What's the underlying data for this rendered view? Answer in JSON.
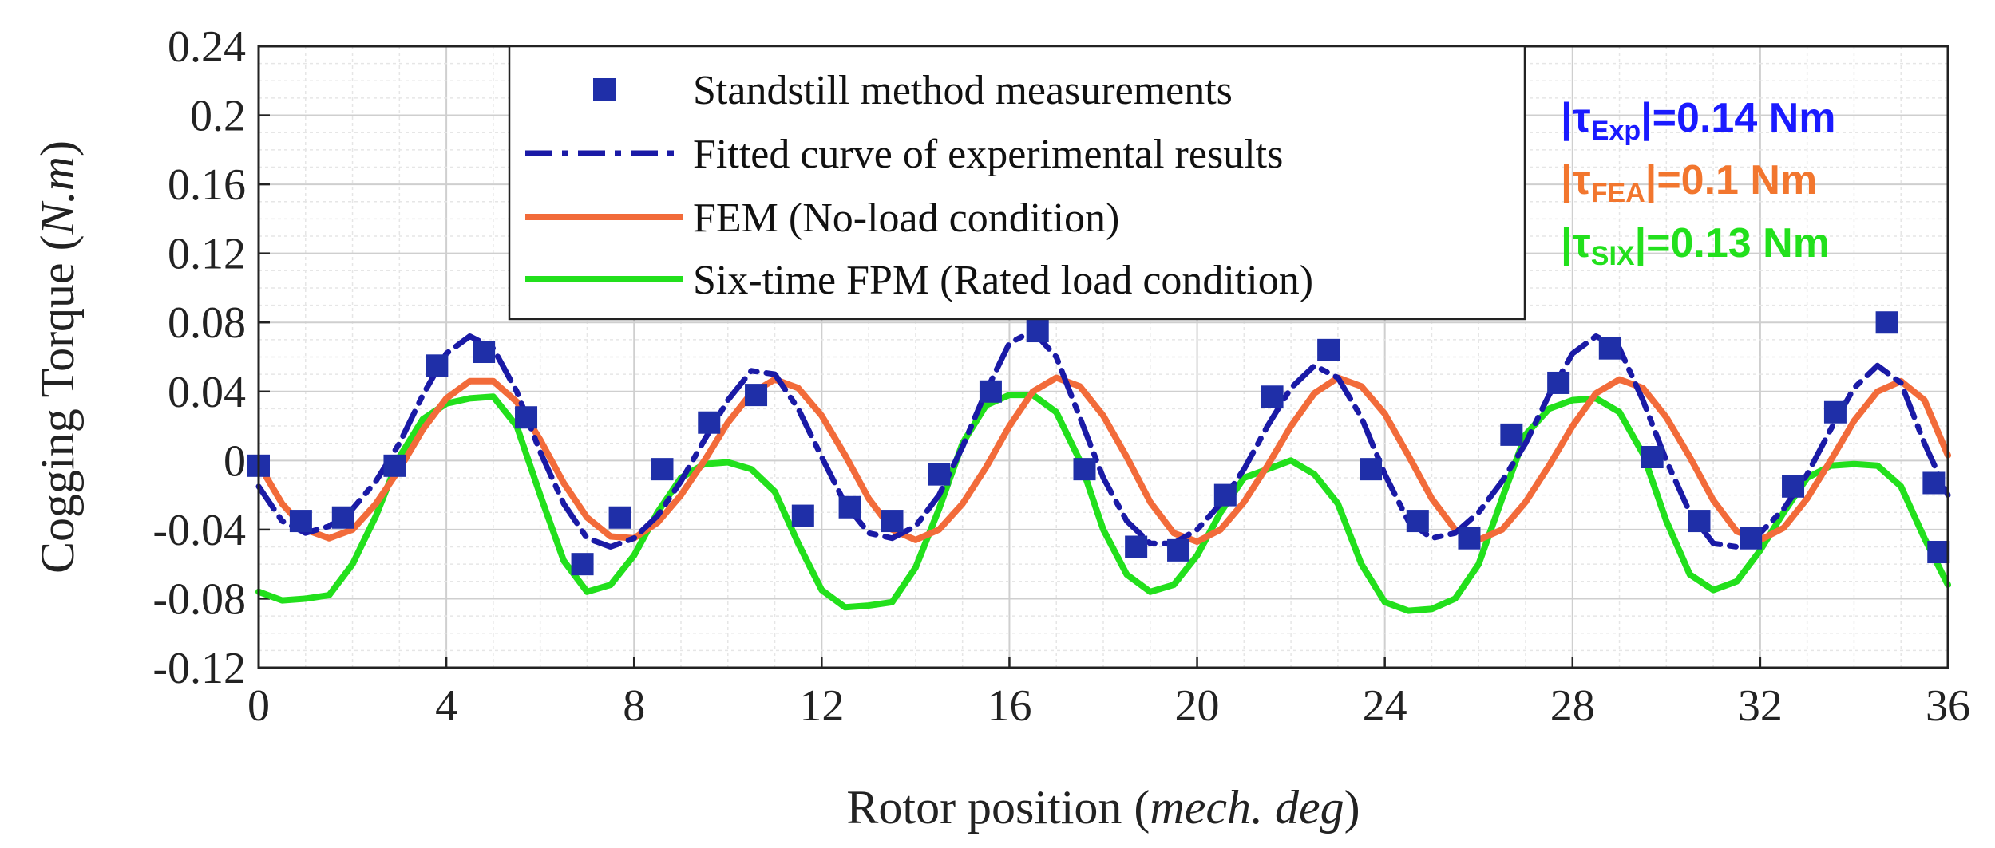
{
  "chart_data": {
    "type": "line",
    "title": "",
    "xlabel": "Rotor position (mech. deg)",
    "xlabel_parts": [
      "Rotor position (",
      "mech. deg",
      ")"
    ],
    "ylabel": "Cogging Torque (N.m)",
    "ylabel_parts": [
      "Cogging Torque (",
      "N.m",
      ")"
    ],
    "xlim": [
      0,
      36
    ],
    "ylim": [
      -0.12,
      0.24
    ],
    "xticks": [
      0,
      4,
      8,
      12,
      16,
      20,
      24,
      28,
      32,
      36
    ],
    "yticks": [
      -0.12,
      -0.08,
      -0.04,
      0,
      0.04,
      0.08,
      0.12,
      0.16,
      0.2,
      0.24
    ],
    "xtick_labels": [
      "0",
      "4",
      "8",
      "12",
      "16",
      "20",
      "24",
      "28",
      "32",
      "36"
    ],
    "ytick_labels": [
      "-0.12",
      "-0.08",
      "-0.04",
      "0",
      "0.04",
      "0.08",
      "0.12",
      "0.16",
      "0.2",
      "0.24"
    ],
    "grid": true,
    "legend_position": "top-center",
    "series": [
      {
        "name": "Standstill method measurements",
        "kind": "scatter",
        "color": "#1f2fa8",
        "x": [
          0,
          0.9,
          1.8,
          2.9,
          3.8,
          4.8,
          5.7,
          6.9,
          7.7,
          8.6,
          9.6,
          10.6,
          11.6,
          12.6,
          13.5,
          14.5,
          15.6,
          16.6,
          17.6,
          18.7,
          19.6,
          20.6,
          21.6,
          22.8,
          23.7,
          24.7,
          25.8,
          26.7,
          27.7,
          28.8,
          29.7,
          30.7,
          31.8,
          32.7,
          33.6,
          34.7,
          35.7,
          35.8
        ],
        "y": [
          -0.003,
          -0.035,
          -0.033,
          -0.003,
          0.055,
          0.063,
          0.025,
          -0.06,
          -0.033,
          -0.005,
          0.022,
          0.038,
          -0.032,
          -0.027,
          -0.035,
          -0.008,
          0.04,
          0.075,
          -0.005,
          -0.05,
          -0.052,
          -0.02,
          0.037,
          0.064,
          -0.005,
          -0.035,
          -0.045,
          0.015,
          0.045,
          0.065,
          0.002,
          -0.035,
          -0.045,
          -0.015,
          0.028,
          0.08,
          -0.013,
          -0.053
        ]
      },
      {
        "name": "Fitted curve of experimental results",
        "kind": "line",
        "color": "#1a1aa6",
        "dash": "dashdot",
        "x": [
          0,
          0.5,
          1,
          1.5,
          2,
          2.5,
          3,
          3.5,
          4,
          4.5,
          5,
          5.5,
          6,
          6.5,
          7,
          7.5,
          8,
          8.5,
          9,
          9.5,
          10,
          10.5,
          11,
          11.5,
          12,
          12.5,
          13,
          13.5,
          14,
          14.5,
          15,
          15.5,
          16,
          16.5,
          17,
          17.5,
          18,
          18.5,
          19,
          19.5,
          20,
          20.5,
          21,
          21.5,
          22,
          22.5,
          23,
          23.5,
          24,
          24.5,
          25,
          25.5,
          26,
          26.5,
          27,
          27.5,
          28,
          28.5,
          29,
          29.5,
          30,
          30.5,
          31,
          31.5,
          32,
          32.5,
          33,
          33.5,
          34,
          34.5,
          35,
          35.5,
          36
        ],
        "y": [
          -0.015,
          -0.035,
          -0.042,
          -0.038,
          -0.028,
          -0.012,
          0.01,
          0.038,
          0.062,
          0.072,
          0.065,
          0.04,
          0.005,
          -0.025,
          -0.045,
          -0.05,
          -0.045,
          -0.032,
          -0.012,
          0.012,
          0.035,
          0.052,
          0.05,
          0.03,
          0.002,
          -0.025,
          -0.042,
          -0.045,
          -0.038,
          -0.02,
          0.008,
          0.04,
          0.068,
          0.075,
          0.06,
          0.025,
          -0.01,
          -0.035,
          -0.048,
          -0.048,
          -0.04,
          -0.025,
          -0.005,
          0.02,
          0.042,
          0.055,
          0.048,
          0.025,
          -0.008,
          -0.035,
          -0.045,
          -0.042,
          -0.03,
          -0.012,
          0.01,
          0.038,
          0.062,
          0.072,
          0.065,
          0.035,
          0.0,
          -0.03,
          -0.048,
          -0.05,
          -0.042,
          -0.028,
          -0.008,
          0.018,
          0.042,
          0.055,
          0.045,
          0.01,
          -0.02
        ]
      },
      {
        "name": "FEM (No-load condition)",
        "kind": "line",
        "color": "#f26b3a",
        "x": [
          0,
          0.5,
          1,
          1.5,
          2,
          2.5,
          3,
          3.5,
          4,
          4.5,
          5,
          5.5,
          6,
          6.5,
          7,
          7.5,
          8,
          8.5,
          9,
          9.5,
          10,
          10.5,
          11,
          11.5,
          12,
          12.5,
          13,
          13.5,
          14,
          14.5,
          15,
          15.5,
          16,
          16.5,
          17,
          17.5,
          18,
          18.5,
          19,
          19.5,
          20,
          20.5,
          21,
          21.5,
          22,
          22.5,
          23,
          23.5,
          24,
          24.5,
          25,
          25.5,
          26,
          26.5,
          27,
          27.5,
          28,
          28.5,
          29,
          29.5,
          30,
          30.5,
          31,
          31.5,
          32,
          32.5,
          33,
          33.5,
          34,
          34.5,
          35,
          35.5,
          36
        ],
        "y": [
          -0.002,
          -0.025,
          -0.04,
          -0.045,
          -0.04,
          -0.025,
          -0.005,
          0.018,
          0.036,
          0.046,
          0.046,
          0.034,
          0.012,
          -0.013,
          -0.033,
          -0.044,
          -0.045,
          -0.036,
          -0.02,
          0.0,
          0.022,
          0.039,
          0.047,
          0.042,
          0.026,
          0.003,
          -0.022,
          -0.04,
          -0.046,
          -0.04,
          -0.025,
          -0.004,
          0.02,
          0.04,
          0.048,
          0.043,
          0.026,
          0.002,
          -0.024,
          -0.042,
          -0.047,
          -0.04,
          -0.024,
          -0.003,
          0.02,
          0.039,
          0.048,
          0.043,
          0.027,
          0.003,
          -0.022,
          -0.04,
          -0.046,
          -0.04,
          -0.024,
          -0.003,
          0.02,
          0.039,
          0.047,
          0.042,
          0.025,
          0.002,
          -0.023,
          -0.041,
          -0.046,
          -0.039,
          -0.022,
          0.0,
          0.023,
          0.04,
          0.046,
          0.035,
          0.003
        ]
      },
      {
        "name": "Six-time FPM (Rated load condition)",
        "kind": "line",
        "color": "#22e01c",
        "x": [
          0,
          0.5,
          1,
          1.5,
          2,
          2.5,
          3,
          3.5,
          4,
          4.5,
          5,
          5.5,
          6,
          6.5,
          7,
          7.5,
          8,
          8.5,
          9,
          9.5,
          10,
          10.5,
          11,
          11.5,
          12,
          12.5,
          13,
          13.5,
          14,
          14.5,
          15,
          15.5,
          16,
          16.5,
          17,
          17.5,
          18,
          18.5,
          19,
          19.5,
          20,
          20.5,
          21,
          21.5,
          22,
          22.5,
          23,
          23.5,
          24,
          24.5,
          25,
          25.5,
          26,
          26.5,
          27,
          27.5,
          28,
          28.5,
          29,
          29.5,
          30,
          30.5,
          31,
          31.5,
          32,
          32.5,
          33,
          33.5,
          34,
          34.5,
          35,
          35.5,
          36
        ],
        "y": [
          -0.076,
          -0.081,
          -0.08,
          -0.078,
          -0.06,
          -0.032,
          0.002,
          0.024,
          0.033,
          0.036,
          0.037,
          0.02,
          -0.02,
          -0.058,
          -0.076,
          -0.072,
          -0.055,
          -0.03,
          -0.01,
          -0.002,
          -0.001,
          -0.005,
          -0.018,
          -0.048,
          -0.075,
          -0.085,
          -0.084,
          -0.082,
          -0.062,
          -0.028,
          0.01,
          0.032,
          0.038,
          0.038,
          0.028,
          0.0,
          -0.04,
          -0.066,
          -0.076,
          -0.072,
          -0.055,
          -0.03,
          -0.01,
          -0.005,
          0.0,
          -0.008,
          -0.025,
          -0.06,
          -0.082,
          -0.087,
          -0.086,
          -0.08,
          -0.06,
          -0.022,
          0.015,
          0.03,
          0.035,
          0.036,
          0.028,
          0.004,
          -0.035,
          -0.066,
          -0.075,
          -0.07,
          -0.052,
          -0.03,
          -0.01,
          -0.003,
          -0.002,
          -0.003,
          -0.015,
          -0.045,
          -0.072
        ]
      }
    ],
    "annotations": [
      {
        "pre": "|τ",
        "sub": "Exp",
        "post": "|=0.14 Nm",
        "color": "#1a1aff"
      },
      {
        "pre": "|τ",
        "sub": "FEA",
        "post": "|=0.1 Nm",
        "color": "#f2762e"
      },
      {
        "pre": "|τ",
        "sub": "SIX",
        "post": "|=0.13 Nm",
        "color": "#22e01c"
      }
    ]
  }
}
